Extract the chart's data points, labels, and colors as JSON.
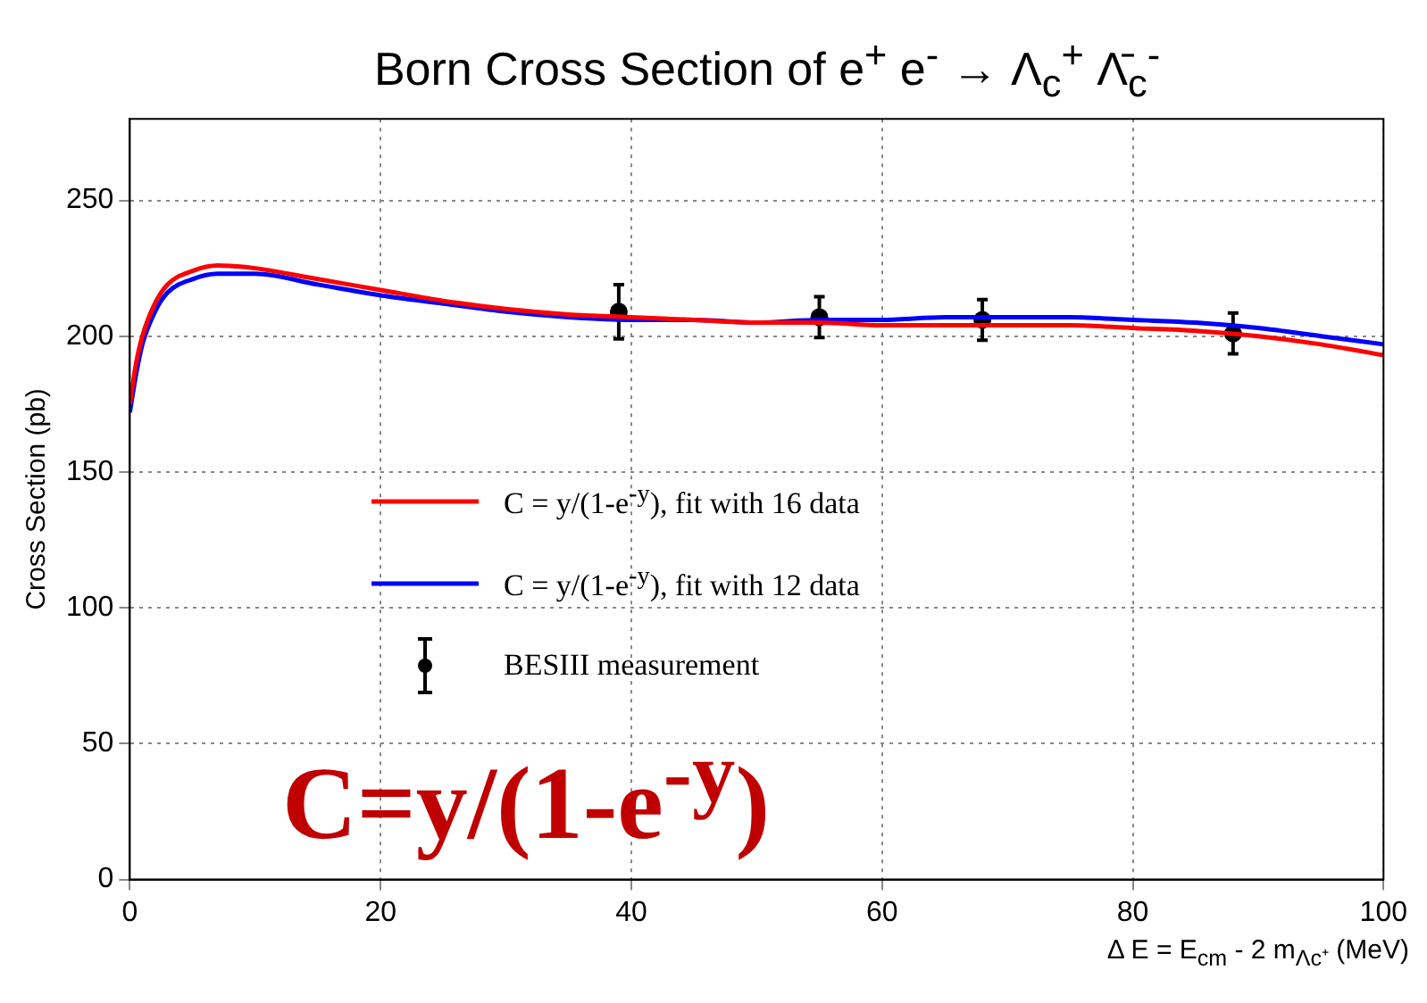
{
  "chart_data": {
    "type": "line",
    "title": "Born Cross Section of e$^{+}$ e$^{-}$ → Λ$_{c}$$^{+}$ Λ̄$_{c}$$^{-}$",
    "xlabel": "Δ E = E$_{cm}$ - 2 m$_{Λc⁺}$ (MeV)",
    "ylabel": "Cross Section (pb)",
    "xlim": [
      0,
      100
    ],
    "xticks": [
      0,
      20,
      40,
      60,
      80,
      100
    ],
    "ylim": [
      0,
      280
    ],
    "yticks": [
      0,
      50,
      100,
      150,
      200,
      250
    ],
    "grid": true,
    "legend": "left",
    "line_style": "solid",
    "annotations": [
      "C=y/(1-e$^{-y}$)"
    ],
    "series": [
      {
        "name": "C = y/(1-e$^{-y}$), fit with 16 data",
        "color": "#ff0000",
        "marker": "none",
        "x": [
          0,
          0.5,
          1,
          2,
          3,
          5,
          7,
          10,
          15,
          20,
          25,
          30,
          35,
          40,
          45,
          50,
          55,
          60,
          65,
          70,
          75,
          80,
          85,
          90,
          95,
          100
        ],
        "values": [
          175,
          190,
          200,
          212,
          219,
          224,
          226,
          225,
          221,
          217,
          213,
          210,
          208,
          207,
          206,
          205,
          205,
          204,
          204,
          204,
          204,
          203,
          202,
          200,
          197,
          193
        ]
      },
      {
        "name": "C = y/(1-e$^{-y}$), fit with 12 data",
        "color": "#0000ff",
        "marker": "none",
        "x": [
          0,
          0.5,
          1,
          2,
          3,
          5,
          7,
          10,
          15,
          20,
          25,
          30,
          35,
          40,
          45,
          50,
          55,
          60,
          65,
          70,
          75,
          80,
          85,
          90,
          95,
          100
        ],
        "values": [
          172,
          186,
          197,
          209,
          216,
          221,
          223,
          223,
          219,
          215,
          212,
          209,
          207,
          206,
          206,
          205,
          206,
          206,
          207,
          207,
          207,
          206,
          205,
          203,
          200,
          197
        ]
      },
      {
        "name": "BESIII measurement",
        "type": "scatter",
        "color": "#000000",
        "marker": "circle",
        "x": [
          39,
          55,
          68,
          88
        ],
        "values": [
          209,
          207,
          206,
          201
        ],
        "errors": [
          10,
          7.5,
          7.5,
          7.5
        ]
      }
    ]
  }
}
